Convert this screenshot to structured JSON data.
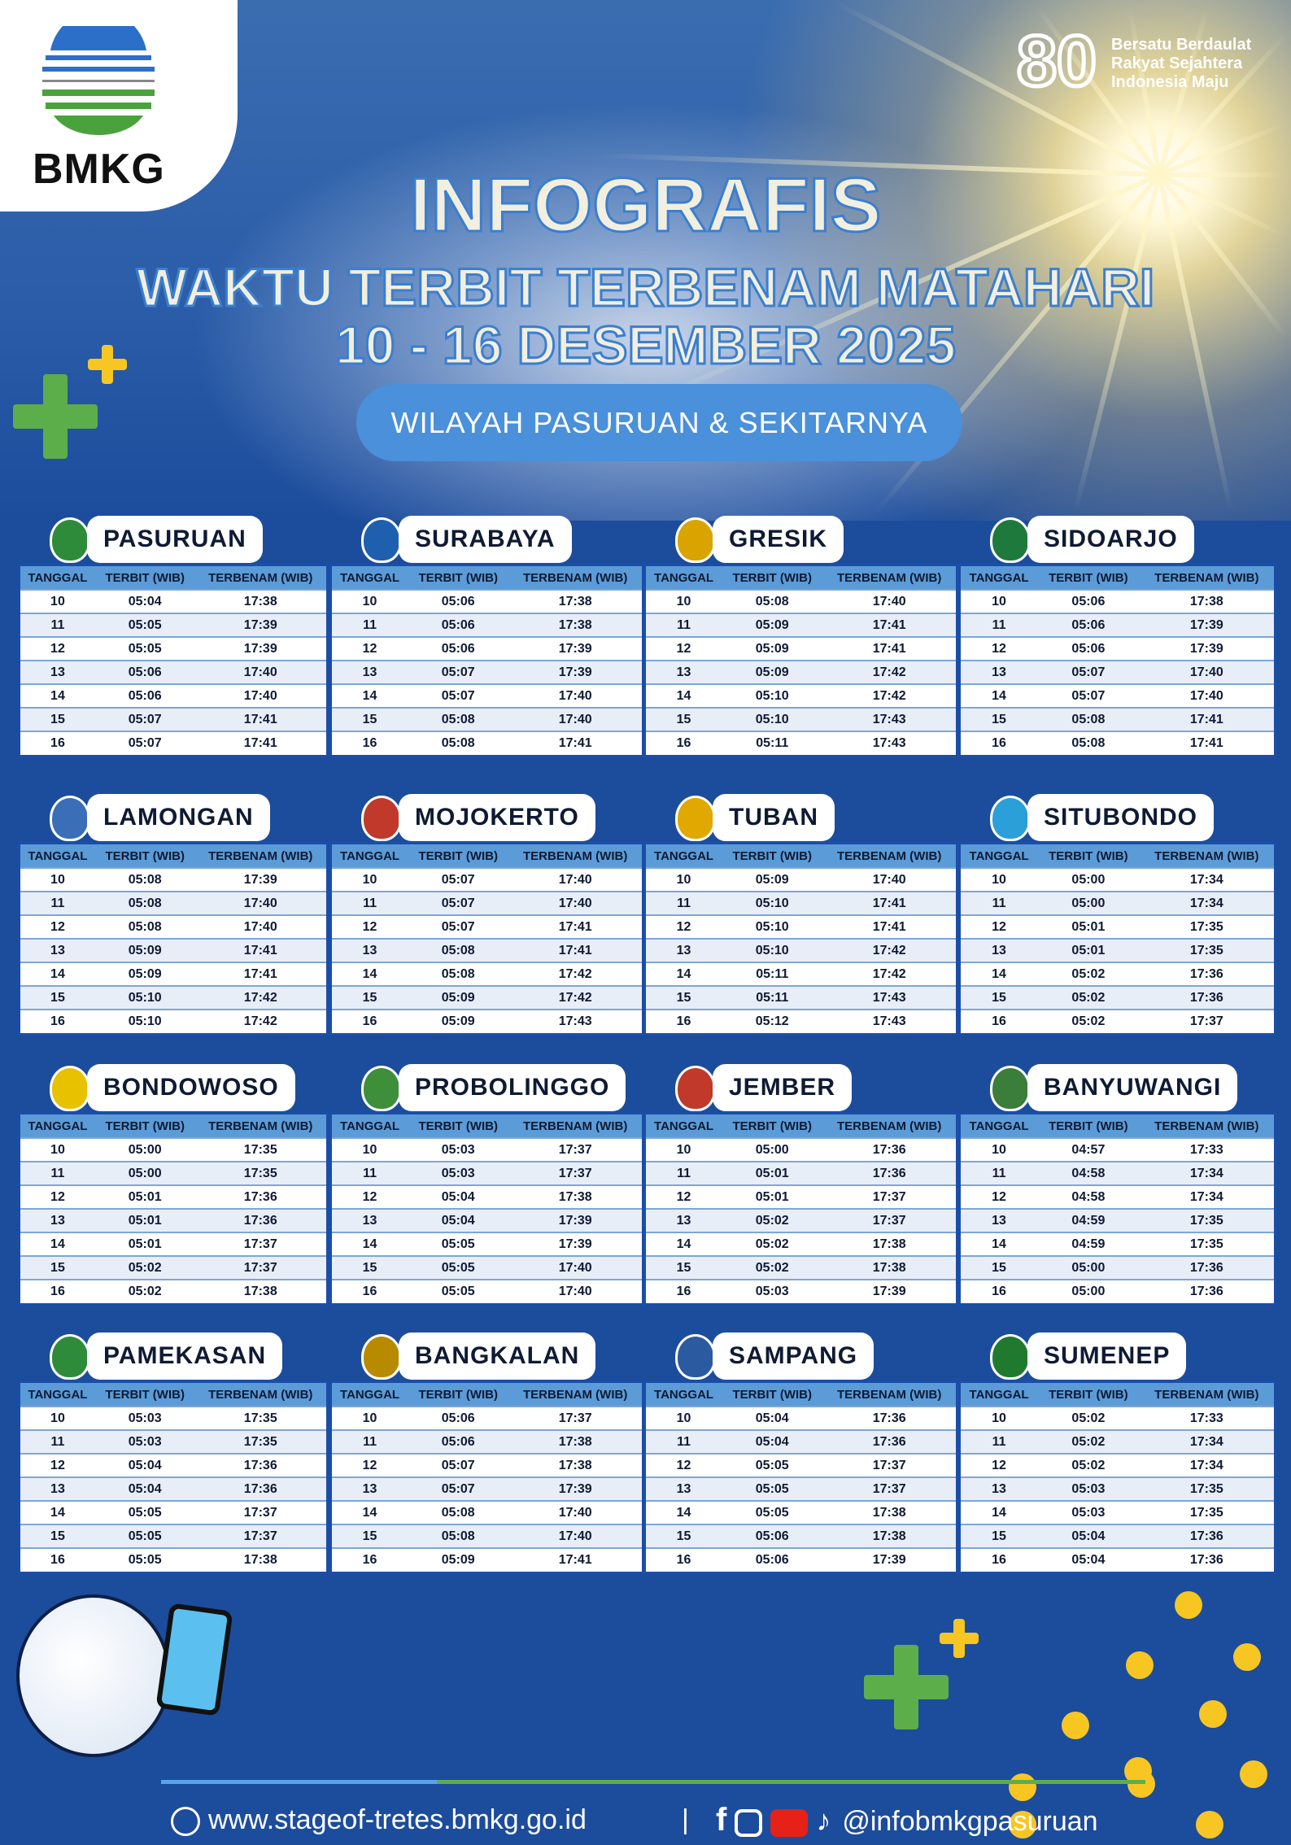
{
  "brand": {
    "logo_text": "BMKG",
    "anniversary_number": "80",
    "motto": [
      "Bersatu Berdaulat",
      "Rakyat Sejahtera",
      "Indonesia Maju"
    ]
  },
  "title": {
    "line1": "INFOGRAFIS",
    "line2": "WAKTU TERBIT TERBENAM MATAHARI",
    "line3": "10 - 16  DESEMBER  2025",
    "region_pill": "WILAYAH PASURUAN & SEKITARNYA"
  },
  "columns": [
    "TANGGAL",
    "TERBIT (WIB)",
    "TERBENAM (WIB)"
  ],
  "colors": {
    "background": "#1c4c9c",
    "table_header": "#5b9bd7",
    "pill": "#4a90da",
    "accent_green": "#5cae4a",
    "accent_yellow": "#f7c623"
  },
  "regions": [
    {
      "name": "PASURUAN",
      "rows": [
        [
          "10",
          "05:04",
          "17:38"
        ],
        [
          "11",
          "05:05",
          "17:39"
        ],
        [
          "12",
          "05:05",
          "17:39"
        ],
        [
          "13",
          "05:06",
          "17:40"
        ],
        [
          "14",
          "05:06",
          "17:40"
        ],
        [
          "15",
          "05:07",
          "17:41"
        ],
        [
          "16",
          "05:07",
          "17:41"
        ]
      ]
    },
    {
      "name": "SURABAYA",
      "rows": [
        [
          "10",
          "05:06",
          "17:38"
        ],
        [
          "11",
          "05:06",
          "17:38"
        ],
        [
          "12",
          "05:06",
          "17:39"
        ],
        [
          "13",
          "05:07",
          "17:39"
        ],
        [
          "14",
          "05:07",
          "17:40"
        ],
        [
          "15",
          "05:08",
          "17:40"
        ],
        [
          "16",
          "05:08",
          "17:41"
        ]
      ]
    },
    {
      "name": "GRESIK",
      "rows": [
        [
          "10",
          "05:08",
          "17:40"
        ],
        [
          "11",
          "05:09",
          "17:41"
        ],
        [
          "12",
          "05:09",
          "17:41"
        ],
        [
          "13",
          "05:09",
          "17:42"
        ],
        [
          "14",
          "05:10",
          "17:42"
        ],
        [
          "15",
          "05:10",
          "17:43"
        ],
        [
          "16",
          "05:11",
          "17:43"
        ]
      ]
    },
    {
      "name": "SIDOARJO",
      "rows": [
        [
          "10",
          "05:06",
          "17:38"
        ],
        [
          "11",
          "05:06",
          "17:39"
        ],
        [
          "12",
          "05:06",
          "17:39"
        ],
        [
          "13",
          "05:07",
          "17:40"
        ],
        [
          "14",
          "05:07",
          "17:40"
        ],
        [
          "15",
          "05:08",
          "17:41"
        ],
        [
          "16",
          "05:08",
          "17:41"
        ]
      ]
    },
    {
      "name": "LAMONGAN",
      "rows": [
        [
          "10",
          "05:08",
          "17:39"
        ],
        [
          "11",
          "05:08",
          "17:40"
        ],
        [
          "12",
          "05:08",
          "17:40"
        ],
        [
          "13",
          "05:09",
          "17:41"
        ],
        [
          "14",
          "05:09",
          "17:41"
        ],
        [
          "15",
          "05:10",
          "17:42"
        ],
        [
          "16",
          "05:10",
          "17:42"
        ]
      ]
    },
    {
      "name": "MOJOKERTO",
      "rows": [
        [
          "10",
          "05:07",
          "17:40"
        ],
        [
          "11",
          "05:07",
          "17:40"
        ],
        [
          "12",
          "05:07",
          "17:41"
        ],
        [
          "13",
          "05:08",
          "17:41"
        ],
        [
          "14",
          "05:08",
          "17:42"
        ],
        [
          "15",
          "05:09",
          "17:42"
        ],
        [
          "16",
          "05:09",
          "17:43"
        ]
      ]
    },
    {
      "name": "TUBAN",
      "rows": [
        [
          "10",
          "05:09",
          "17:40"
        ],
        [
          "11",
          "05:10",
          "17:41"
        ],
        [
          "12",
          "05:10",
          "17:41"
        ],
        [
          "13",
          "05:10",
          "17:42"
        ],
        [
          "14",
          "05:11",
          "17:42"
        ],
        [
          "15",
          "05:11",
          "17:43"
        ],
        [
          "16",
          "05:12",
          "17:43"
        ]
      ]
    },
    {
      "name": "SITUBONDO",
      "rows": [
        [
          "10",
          "05:00",
          "17:34"
        ],
        [
          "11",
          "05:00",
          "17:34"
        ],
        [
          "12",
          "05:01",
          "17:35"
        ],
        [
          "13",
          "05:01",
          "17:35"
        ],
        [
          "14",
          "05:02",
          "17:36"
        ],
        [
          "15",
          "05:02",
          "17:36"
        ],
        [
          "16",
          "05:02",
          "17:37"
        ]
      ]
    },
    {
      "name": "BONDOWOSO",
      "rows": [
        [
          "10",
          "05:00",
          "17:35"
        ],
        [
          "11",
          "05:00",
          "17:35"
        ],
        [
          "12",
          "05:01",
          "17:36"
        ],
        [
          "13",
          "05:01",
          "17:36"
        ],
        [
          "14",
          "05:01",
          "17:37"
        ],
        [
          "15",
          "05:02",
          "17:37"
        ],
        [
          "16",
          "05:02",
          "17:38"
        ]
      ]
    },
    {
      "name": "PROBOLINGGO",
      "rows": [
        [
          "10",
          "05:03",
          "17:37"
        ],
        [
          "11",
          "05:03",
          "17:37"
        ],
        [
          "12",
          "05:04",
          "17:38"
        ],
        [
          "13",
          "05:04",
          "17:39"
        ],
        [
          "14",
          "05:05",
          "17:39"
        ],
        [
          "15",
          "05:05",
          "17:40"
        ],
        [
          "16",
          "05:05",
          "17:40"
        ]
      ]
    },
    {
      "name": "JEMBER",
      "rows": [
        [
          "10",
          "05:00",
          "17:36"
        ],
        [
          "11",
          "05:01",
          "17:36"
        ],
        [
          "12",
          "05:01",
          "17:37"
        ],
        [
          "13",
          "05:02",
          "17:37"
        ],
        [
          "14",
          "05:02",
          "17:38"
        ],
        [
          "15",
          "05:02",
          "17:38"
        ],
        [
          "16",
          "05:03",
          "17:39"
        ]
      ]
    },
    {
      "name": "BANYUWANGI",
      "rows": [
        [
          "10",
          "04:57",
          "17:33"
        ],
        [
          "11",
          "04:58",
          "17:34"
        ],
        [
          "12",
          "04:58",
          "17:34"
        ],
        [
          "13",
          "04:59",
          "17:35"
        ],
        [
          "14",
          "04:59",
          "17:35"
        ],
        [
          "15",
          "05:00",
          "17:36"
        ],
        [
          "16",
          "05:00",
          "17:36"
        ]
      ]
    },
    {
      "name": "PAMEKASAN",
      "rows": [
        [
          "10",
          "05:03",
          "17:35"
        ],
        [
          "11",
          "05:03",
          "17:35"
        ],
        [
          "12",
          "05:04",
          "17:36"
        ],
        [
          "13",
          "05:04",
          "17:36"
        ],
        [
          "14",
          "05:05",
          "17:37"
        ],
        [
          "15",
          "05:05",
          "17:37"
        ],
        [
          "16",
          "05:05",
          "17:38"
        ]
      ]
    },
    {
      "name": "BANGKALAN",
      "rows": [
        [
          "10",
          "05:06",
          "17:37"
        ],
        [
          "11",
          "05:06",
          "17:38"
        ],
        [
          "12",
          "05:07",
          "17:38"
        ],
        [
          "13",
          "05:07",
          "17:39"
        ],
        [
          "14",
          "05:08",
          "17:40"
        ],
        [
          "15",
          "05:08",
          "17:40"
        ],
        [
          "16",
          "05:09",
          "17:41"
        ]
      ]
    },
    {
      "name": "SAMPANG",
      "rows": [
        [
          "10",
          "05:04",
          "17:36"
        ],
        [
          "11",
          "05:04",
          "17:36"
        ],
        [
          "12",
          "05:05",
          "17:37"
        ],
        [
          "13",
          "05:05",
          "17:37"
        ],
        [
          "14",
          "05:05",
          "17:38"
        ],
        [
          "15",
          "05:06",
          "17:38"
        ],
        [
          "16",
          "05:06",
          "17:39"
        ]
      ]
    },
    {
      "name": "SUMENEP",
      "rows": [
        [
          "10",
          "05:02",
          "17:33"
        ],
        [
          "11",
          "05:02",
          "17:34"
        ],
        [
          "12",
          "05:02",
          "17:34"
        ],
        [
          "13",
          "05:03",
          "17:35"
        ],
        [
          "14",
          "05:03",
          "17:35"
        ],
        [
          "15",
          "05:04",
          "17:36"
        ],
        [
          "16",
          "05:04",
          "17:36"
        ]
      ]
    }
  ],
  "footer": {
    "website": "www.stageof-tretes.bmkg.go.id",
    "separator": "|",
    "social_handle": "@infobmkgpasuruan",
    "icons": [
      "globe-icon",
      "facebook-icon",
      "instagram-icon",
      "youtube-icon",
      "tiktok-icon"
    ]
  }
}
